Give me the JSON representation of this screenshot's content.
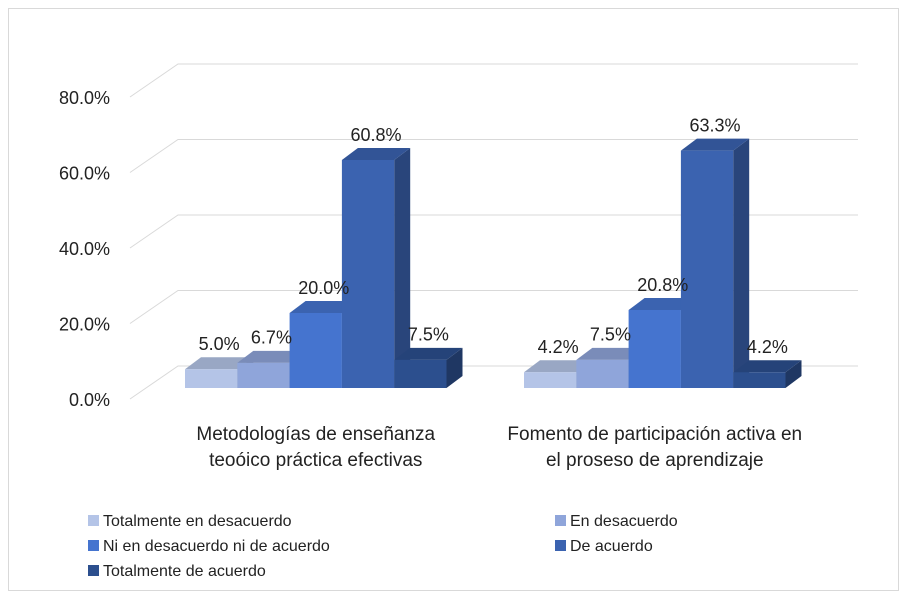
{
  "chart_data": {
    "type": "bar3d",
    "categories": [
      "Metodologías de enseñanza teoóico práctica efectivas",
      "Fomento de participación activa en el proseso de aprendizaje"
    ],
    "series": [
      {
        "name": "Totalmente en desacuerdo",
        "color": "#b4c4e7",
        "values": [
          5.0,
          4.2
        ],
        "value_labels": [
          "5.0%",
          "4.2%"
        ]
      },
      {
        "name": "En desacuerdo",
        "color": "#8fa5da",
        "values": [
          6.7,
          7.5
        ],
        "value_labels": [
          "6.7%",
          "7.5%"
        ]
      },
      {
        "name": "Ni en desacuerdo ni de acuerdo",
        "color": "#4574cf",
        "values": [
          20.0,
          20.8
        ],
        "value_labels": [
          "20.0%",
          "20.8%"
        ]
      },
      {
        "name": "De acuerdo",
        "color": "#3b63b0",
        "values": [
          60.8,
          63.3
        ],
        "value_labels": [
          "60.8%",
          "63.3%"
        ]
      },
      {
        "name": "Totalmente de acuerdo",
        "color": "#2c4f8e",
        "values": [
          7.5,
          4.2
        ],
        "value_labels": [
          "7.5%",
          "4.2%"
        ]
      }
    ],
    "ylim": [
      0,
      80
    ],
    "yticks": [
      {
        "value": 0,
        "label": "0.0%"
      },
      {
        "value": 20,
        "label": "20.0%"
      },
      {
        "value": 40,
        "label": "40.0%"
      },
      {
        "value": 60,
        "label": "60.0%"
      },
      {
        "value": 80,
        "label": "80.0%"
      }
    ],
    "grid": true,
    "legend": "bottom"
  }
}
